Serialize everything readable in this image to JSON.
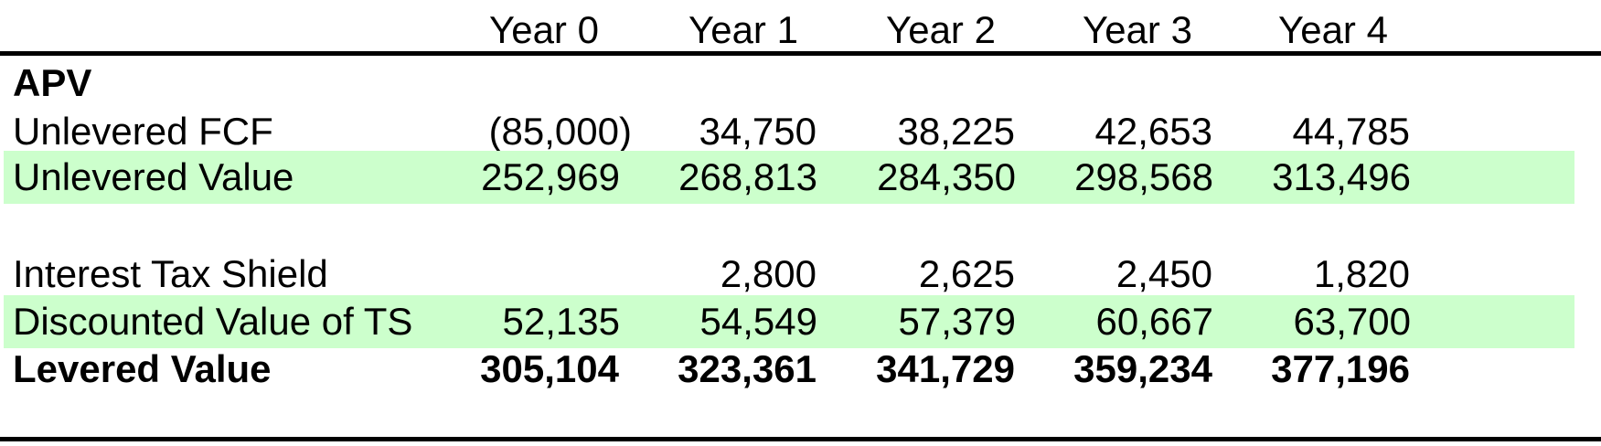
{
  "header": {
    "columns": [
      "Year 0",
      "Year 1",
      "Year 2",
      "Year 3",
      "Year 4"
    ]
  },
  "section_title": "APV",
  "rows": [
    {
      "label": "Unlevered FCF",
      "values": [
        "(85,000)",
        "34,750",
        "38,225",
        "42,653",
        "44,785"
      ],
      "shaded": false
    },
    {
      "label": "Unlevered Value",
      "values": [
        "252,969",
        "268,813",
        "284,350",
        "298,568",
        "313,496"
      ],
      "shaded": true
    },
    {
      "label": "Interest Tax Shield",
      "values": [
        "",
        "2,800",
        "2,625",
        "2,450",
        "1,820"
      ],
      "shaded": false
    },
    {
      "label": "Discounted Value of TS",
      "values": [
        "52,135",
        "54,549",
        "57,379",
        "60,667",
        "63,700"
      ],
      "shaded": true
    },
    {
      "label": "Levered Value",
      "values": [
        "305,104",
        "323,361",
        "341,729",
        "359,234",
        "377,196"
      ],
      "shaded": false,
      "bold": true
    }
  ],
  "colors": {
    "shade": "#ccffcc",
    "text": "#000000",
    "rule": "#000000"
  }
}
